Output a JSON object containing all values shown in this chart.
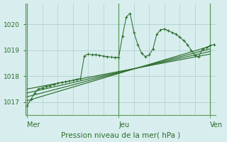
{
  "title": "Pression niveau de la mer( hPa )",
  "bg_color": "#d8eeee",
  "grid_color": "#b0cece",
  "line_color": "#2d6e2d",
  "yticks": [
    1017,
    1018,
    1019,
    1020
  ],
  "ylim": [
    1016.5,
    1020.8
  ],
  "xtick_labels": [
    "Mer",
    "Jeu",
    "Ven"
  ],
  "xtick_positions": [
    0,
    48,
    96
  ],
  "xlim": [
    -1,
    99
  ],
  "smooth_lines": [
    {
      "x0": 0,
      "y0": 1017.05,
      "x1": 96,
      "y1": 1019.15
    },
    {
      "x0": 0,
      "y0": 1017.2,
      "x1": 96,
      "y1": 1019.05
    },
    {
      "x0": 0,
      "y0": 1017.35,
      "x1": 96,
      "y1": 1018.95
    },
    {
      "x0": 0,
      "y0": 1017.5,
      "x1": 96,
      "y1": 1018.85
    }
  ],
  "noisy_x": [
    0,
    2,
    4,
    6,
    8,
    10,
    12,
    14,
    16,
    18,
    20,
    22,
    24,
    26,
    28,
    30,
    32,
    34,
    36,
    38,
    40,
    42,
    44,
    46,
    48,
    50,
    52,
    54,
    56,
    58,
    60,
    62,
    64,
    66,
    68,
    70,
    72,
    74,
    76,
    78,
    80,
    82,
    84,
    86,
    88,
    90,
    92,
    94,
    96,
    98
  ],
  "noisy_y": [
    1016.85,
    1017.1,
    1017.35,
    1017.5,
    1017.55,
    1017.6,
    1017.63,
    1017.67,
    1017.72,
    1017.75,
    1017.78,
    1017.8,
    1017.83,
    1017.88,
    1017.9,
    1018.78,
    1018.85,
    1018.82,
    1018.83,
    1018.8,
    1018.77,
    1018.75,
    1018.73,
    1018.72,
    1018.72,
    1019.55,
    1020.28,
    1020.42,
    1019.68,
    1019.22,
    1018.88,
    1018.75,
    1018.82,
    1019.05,
    1019.62,
    1019.78,
    1019.82,
    1019.75,
    1019.68,
    1019.62,
    1019.5,
    1019.38,
    1019.22,
    1019.0,
    1018.8,
    1018.75,
    1019.05,
    1019.1,
    1019.18,
    1019.22
  ]
}
